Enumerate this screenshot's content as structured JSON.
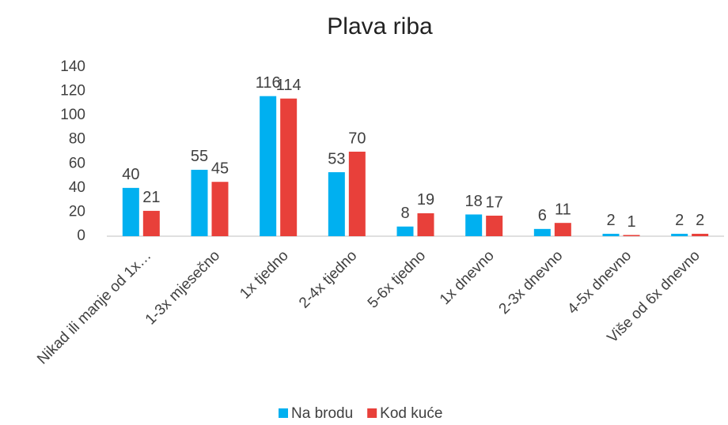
{
  "chart_data": {
    "type": "bar",
    "title": "Plava riba",
    "categories": [
      "Nikad ili manje od 1x…",
      "1-3x mjesečno",
      "1x tjedno",
      "2-4x tjedno",
      "5-6x tjedno",
      "1x dnevno",
      "2-3x dnevno",
      "4-5x dnevno",
      "Više od 6x dnevno"
    ],
    "series": [
      {
        "name": "Na brodu",
        "color": "#00b0f0",
        "values": [
          40,
          55,
          116,
          53,
          8,
          18,
          6,
          2,
          2
        ]
      },
      {
        "name": "Kod kuće",
        "color": "#e8403a",
        "values": [
          21,
          45,
          114,
          70,
          19,
          17,
          11,
          1,
          2
        ]
      }
    ],
    "ylim": [
      0,
      140
    ],
    "yticks": [
      0,
      20,
      40,
      60,
      80,
      100,
      120,
      140
    ],
    "grid": false,
    "legend": "bottom"
  }
}
